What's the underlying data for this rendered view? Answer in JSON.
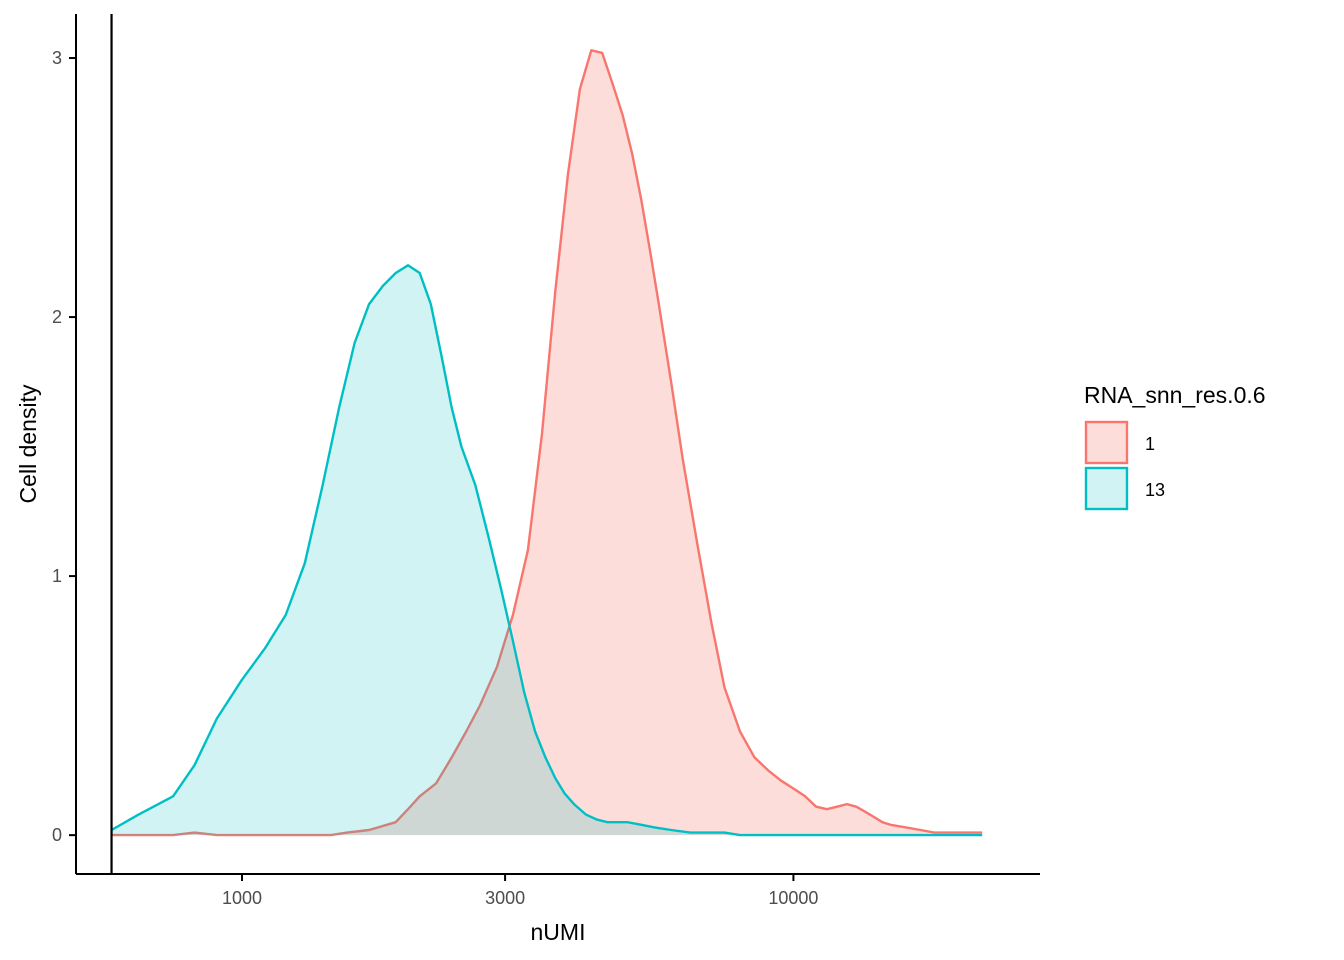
{
  "chart_data": {
    "type": "area",
    "xlabel": "nUMI",
    "ylabel": "Cell density",
    "x_scale": "log10",
    "xlim": [
      500,
      28000
    ],
    "ylim": [
      -0.15,
      3.17
    ],
    "x_ticks": [
      1000,
      3000,
      10000
    ],
    "x_tick_labels": [
      "1000",
      "3000",
      "10000"
    ],
    "y_ticks": [
      0,
      1,
      2,
      3
    ],
    "y_tick_labels": [
      "0",
      "1",
      "2",
      "3"
    ],
    "grid": false,
    "vline_x": 580,
    "legend": {
      "title": "RNA_snn_res.0.6",
      "position": "right",
      "entries": [
        "1",
        "13"
      ]
    },
    "series": [
      {
        "name": "1",
        "color": "#F8766D",
        "fill": "#F8766D",
        "fill_opacity": 0.25,
        "x": [
          580,
          650,
          750,
          820,
          900,
          1000,
          1150,
          1300,
          1450,
          1550,
          1700,
          1900,
          2000,
          2100,
          2250,
          2400,
          2550,
          2700,
          2900,
          3100,
          3300,
          3500,
          3700,
          3900,
          4100,
          4300,
          4500,
          4700,
          4900,
          5100,
          5300,
          5500,
          5700,
          6000,
          6300,
          6700,
          7100,
          7500,
          8000,
          8500,
          9000,
          9500,
          10000,
          10500,
          11000,
          11500,
          12000,
          12500,
          13000,
          13500,
          14000,
          14500,
          15000,
          16000,
          17000,
          18000,
          19000,
          20000,
          21000,
          22000
        ],
        "y": [
          0.0,
          0.0,
          0.0,
          0.01,
          0.0,
          0.0,
          0.0,
          0.0,
          0.0,
          0.01,
          0.02,
          0.05,
          0.1,
          0.15,
          0.2,
          0.3,
          0.4,
          0.5,
          0.65,
          0.85,
          1.1,
          1.55,
          2.1,
          2.55,
          2.88,
          3.03,
          3.02,
          2.9,
          2.78,
          2.63,
          2.45,
          2.25,
          2.05,
          1.75,
          1.45,
          1.12,
          0.82,
          0.57,
          0.4,
          0.3,
          0.25,
          0.21,
          0.18,
          0.15,
          0.11,
          0.1,
          0.11,
          0.12,
          0.11,
          0.09,
          0.07,
          0.05,
          0.04,
          0.03,
          0.02,
          0.01,
          0.01,
          0.01,
          0.01,
          0.01
        ]
      },
      {
        "name": "13",
        "color": "#00BFC4",
        "fill": "#00BFC4",
        "fill_opacity": 0.18,
        "x": [
          580,
          650,
          750,
          820,
          900,
          1000,
          1100,
          1200,
          1300,
          1400,
          1500,
          1600,
          1700,
          1800,
          1900,
          2000,
          2100,
          2200,
          2300,
          2400,
          2500,
          2650,
          2800,
          2950,
          3100,
          3250,
          3400,
          3550,
          3700,
          3850,
          4000,
          4200,
          4400,
          4600,
          4800,
          5000,
          5300,
          5600,
          6000,
          6500,
          7000,
          7500,
          8000,
          9000,
          10000,
          12000,
          14000,
          17000,
          20000,
          22000
        ],
        "y": [
          0.02,
          0.08,
          0.15,
          0.27,
          0.45,
          0.6,
          0.72,
          0.85,
          1.05,
          1.35,
          1.65,
          1.9,
          2.05,
          2.12,
          2.17,
          2.2,
          2.17,
          2.05,
          1.85,
          1.65,
          1.5,
          1.35,
          1.15,
          0.95,
          0.75,
          0.55,
          0.4,
          0.3,
          0.22,
          0.16,
          0.12,
          0.08,
          0.06,
          0.05,
          0.05,
          0.05,
          0.04,
          0.03,
          0.02,
          0.01,
          0.01,
          0.01,
          0.0,
          0.0,
          0.0,
          0.0,
          0.0,
          0.0,
          0.0,
          0.0
        ]
      }
    ]
  }
}
